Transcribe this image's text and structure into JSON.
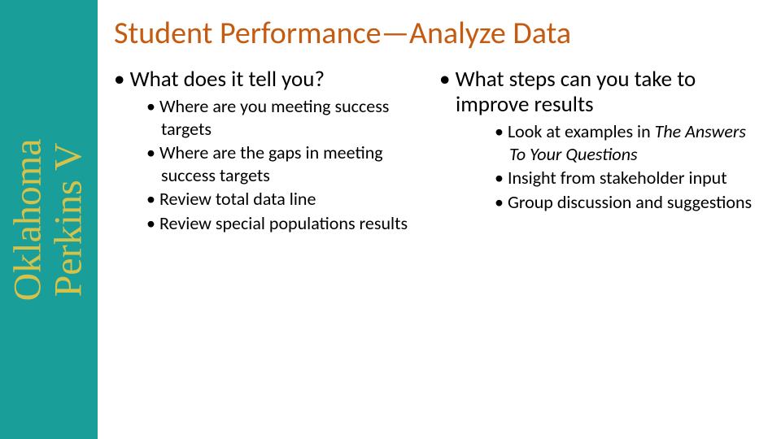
{
  "colors": {
    "sidebar_bg": "#1a9e9a",
    "sidebar_text": "#d4c24a",
    "title_color": "#c55a11",
    "body_text": "#000000",
    "page_bg": "#ffffff"
  },
  "sidebar": {
    "line1": "Oklahoma",
    "line2": "Perkins V"
  },
  "title": "Student Performance—Analyze Data",
  "left": {
    "heading": "What does it tell you?",
    "bullets": [
      "Where are you meeting success targets",
      "Where are the gaps in meeting success targets",
      "Review total data line",
      "Review special populations results"
    ]
  },
  "right": {
    "heading": "What steps can you take to improve results",
    "bullets": [
      {
        "pre": "Look at examples in ",
        "italic": "The Answers To Your Questions"
      },
      {
        "pre": "Insight from stakeholder input"
      },
      {
        "pre": "Group discussion and suggestions"
      }
    ]
  }
}
